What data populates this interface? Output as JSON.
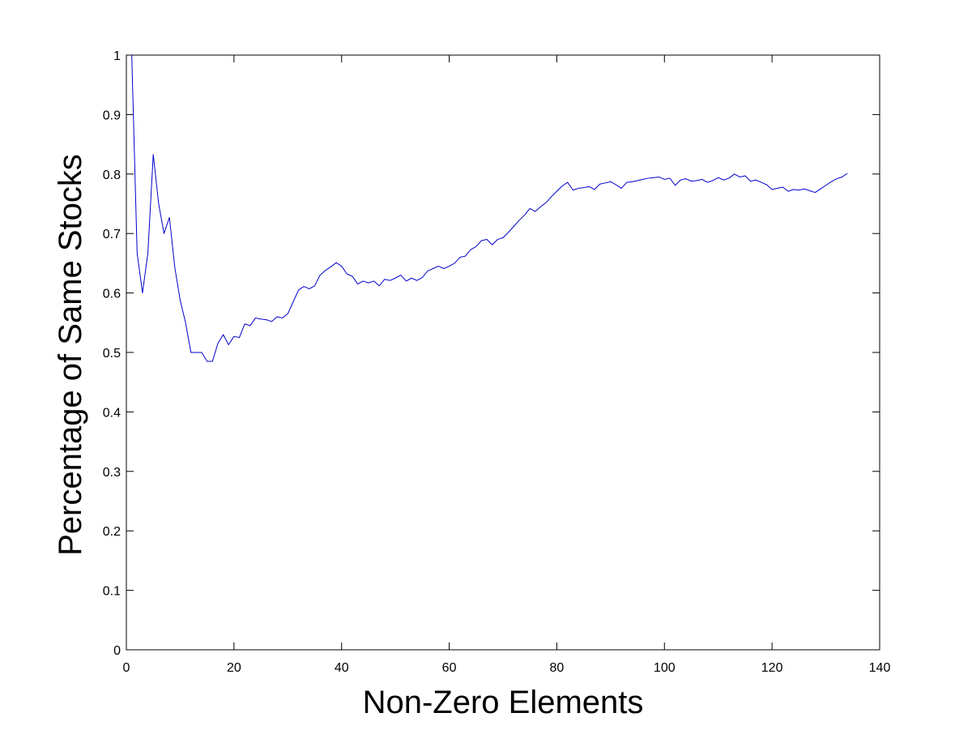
{
  "chart_data": {
    "type": "line",
    "title": "",
    "xlabel": "Non-Zero Elements",
    "ylabel": "Percentage of Same Stocks",
    "xlim": [
      0,
      140
    ],
    "ylim": [
      0,
      1
    ],
    "xticks": [
      0,
      20,
      40,
      60,
      80,
      100,
      120,
      140
    ],
    "yticks": [
      0,
      0.1,
      0.2,
      0.3,
      0.4,
      0.5,
      0.6,
      0.7,
      0.8,
      0.9,
      1
    ],
    "xtick_labels": [
      "0",
      "20",
      "40",
      "60",
      "80",
      "100",
      "120",
      "140"
    ],
    "ytick_labels": [
      "0",
      "0.1",
      "0.2",
      "0.3",
      "0.4",
      "0.5",
      "0.6",
      "0.7",
      "0.8",
      "0.9",
      "1"
    ],
    "grid": false,
    "legend": "none",
    "series": [
      {
        "color": "#0000cc",
        "x": [
          1,
          2,
          3,
          4,
          5,
          6,
          7,
          8,
          9,
          10,
          11,
          12,
          13,
          14,
          15,
          16,
          17,
          18,
          19,
          20,
          21,
          22,
          23,
          24,
          25,
          26,
          27,
          28,
          29,
          30,
          31,
          32,
          33,
          34,
          35,
          36,
          37,
          38,
          39,
          40,
          41,
          42,
          43,
          44,
          45,
          46,
          47,
          48,
          49,
          50,
          51,
          52,
          53,
          54,
          55,
          56,
          57,
          58,
          59,
          60,
          61,
          62,
          63,
          64,
          65,
          66,
          67,
          68,
          69,
          70,
          71,
          72,
          73,
          74,
          75,
          76,
          77,
          78,
          79,
          80,
          81,
          82,
          83,
          84,
          85,
          86,
          87,
          88,
          89,
          90,
          91,
          92,
          93,
          94,
          95,
          96,
          97,
          98,
          99,
          100,
          101,
          102,
          103,
          104,
          105,
          106,
          107,
          108,
          109,
          110,
          111,
          112,
          113,
          114,
          115,
          116,
          117,
          118,
          119,
          120,
          121,
          122,
          123,
          124,
          125,
          126,
          127,
          128,
          129,
          130,
          131,
          132,
          133,
          134
        ],
        "values": [
          1.0,
          0.667,
          0.6,
          0.667,
          0.833,
          0.75,
          0.7,
          0.727,
          0.643,
          0.588,
          0.55,
          0.5,
          0.5,
          0.5,
          0.485,
          0.485,
          0.515,
          0.53,
          0.513,
          0.527,
          0.525,
          0.548,
          0.545,
          0.558,
          0.556,
          0.555,
          0.552,
          0.56,
          0.558,
          0.565,
          0.585,
          0.605,
          0.611,
          0.607,
          0.612,
          0.63,
          0.638,
          0.644,
          0.651,
          0.645,
          0.632,
          0.628,
          0.615,
          0.62,
          0.617,
          0.62,
          0.612,
          0.623,
          0.621,
          0.625,
          0.63,
          0.62,
          0.625,
          0.621,
          0.626,
          0.637,
          0.641,
          0.645,
          0.641,
          0.645,
          0.65,
          0.66,
          0.662,
          0.673,
          0.678,
          0.688,
          0.69,
          0.681,
          0.69,
          0.693,
          0.702,
          0.712,
          0.722,
          0.731,
          0.742,
          0.737,
          0.745,
          0.752,
          0.762,
          0.771,
          0.78,
          0.786,
          0.773,
          0.776,
          0.777,
          0.779,
          0.774,
          0.783,
          0.785,
          0.787,
          0.782,
          0.776,
          0.786,
          0.787,
          0.789,
          0.791,
          0.793,
          0.794,
          0.795,
          0.791,
          0.793,
          0.781,
          0.79,
          0.792,
          0.788,
          0.789,
          0.791,
          0.786,
          0.789,
          0.794,
          0.79,
          0.793,
          0.8,
          0.795,
          0.797,
          0.788,
          0.79,
          0.786,
          0.782,
          0.774,
          0.776,
          0.778,
          0.771,
          0.774,
          0.773,
          0.775,
          0.772,
          0.769,
          0.775,
          0.781,
          0.787,
          0.792,
          0.795,
          0.801
        ]
      }
    ]
  }
}
